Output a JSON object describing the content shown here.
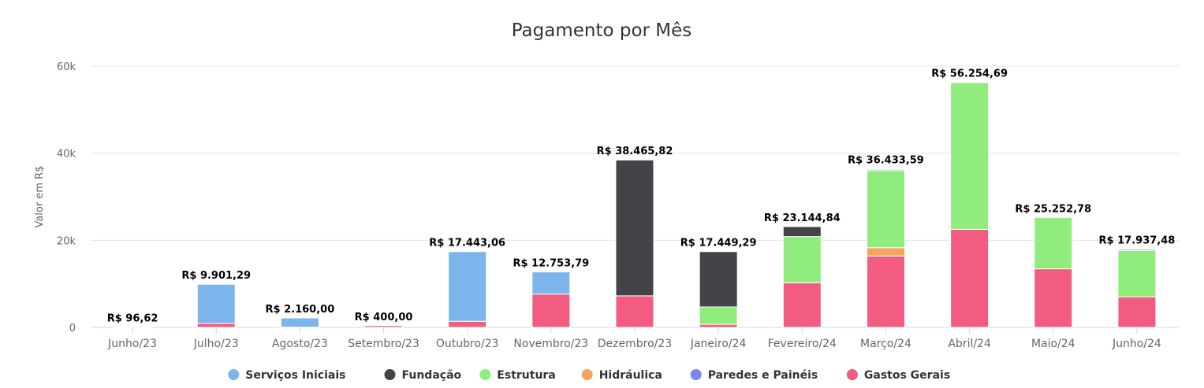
{
  "chart_data": {
    "type": "bar",
    "stacked": true,
    "title": "Pagamento por Mês",
    "xlabel": "",
    "ylabel": "Valor em R$",
    "ylim": [
      0,
      60000
    ],
    "yticks": [
      0,
      20000,
      40000,
      60000
    ],
    "ytick_labels": [
      "0",
      "20k",
      "40k",
      "60k"
    ],
    "categories": [
      "Junho/23",
      "Julho/23",
      "Agosto/23",
      "Setembro/23",
      "Outubro/23",
      "Novembro/23",
      "Dezembro/23",
      "Janeiro/24",
      "Fevereiro/24",
      "Março/24",
      "Abril/24",
      "Maio/24",
      "Junho/24"
    ],
    "totals_labels": [
      "R$ 96,62",
      "R$ 9.901,29",
      "R$ 2.160,00",
      "R$ 400,00",
      "R$ 17.443,06",
      "R$ 12.753,79",
      "R$ 38.465,82",
      "R$ 17.449,29",
      "R$ 23.144,84",
      "R$ 36.433,59",
      "R$ 56.254,69",
      "R$ 25.252,78",
      "R$ 17.937,48"
    ],
    "totals": [
      96.62,
      9901.29,
      2160.0,
      400.0,
      17443.06,
      12753.79,
      38465.82,
      17449.29,
      23144.84,
      36433.59,
      56254.69,
      25252.78,
      17937.48
    ],
    "series": [
      {
        "name": "Serviços Iniciais",
        "color": "#7cb5ec",
        "values": [
          97,
          9000,
          2110,
          0,
          16000,
          5100,
          0,
          0,
          0,
          300,
          0,
          0,
          300
        ]
      },
      {
        "name": "Fundação",
        "color": "#434348",
        "values": [
          0,
          0,
          0,
          0,
          0,
          0,
          31200,
          12700,
          2300,
          0,
          0,
          0,
          0
        ]
      },
      {
        "name": "Estrutura",
        "color": "#90ed7d",
        "values": [
          0,
          0,
          0,
          0,
          0,
          0,
          0,
          4000,
          10600,
          17700,
          33700,
          11800,
          10600
        ]
      },
      {
        "name": "Hidráulica",
        "color": "#f7a35c",
        "values": [
          0,
          0,
          0,
          0,
          0,
          0,
          0,
          0,
          0,
          1900,
          0,
          0,
          0
        ]
      },
      {
        "name": "Paredes e Painéis",
        "color": "#8085e9",
        "values": [
          0,
          0,
          0,
          0,
          0,
          0,
          0,
          0,
          0,
          80,
          0,
          0,
          0
        ]
      },
      {
        "name": "Gastos Gerais",
        "color": "#f15c80",
        "values": [
          0,
          900,
          50,
          400,
          1400,
          7650,
          7250,
          700,
          10250,
          16400,
          22500,
          13450,
          7040
        ]
      }
    ],
    "stack_order_bottom_to_top": [
      "Gastos Gerais",
      "Hidráulica",
      "Estrutura",
      "Fundação",
      "Serviços Iniciais",
      "Paredes e Painéis"
    ],
    "grid": true,
    "legend_position": "bottom-center"
  }
}
